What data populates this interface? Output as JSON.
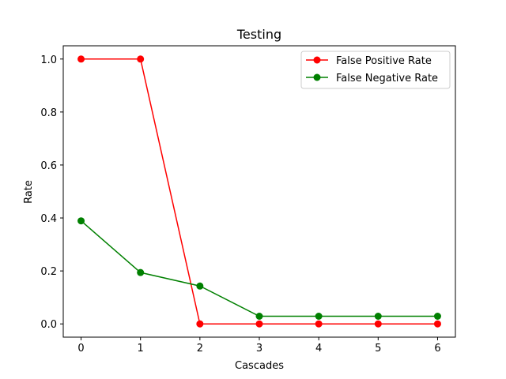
{
  "chart_data": {
    "type": "line",
    "title": "Testing",
    "xlabel": "Cascades",
    "ylabel": "Rate",
    "x": [
      0,
      1,
      2,
      3,
      4,
      5,
      6
    ],
    "xlim": [
      -0.3,
      6.3
    ],
    "ylim": [
      -0.05,
      1.05
    ],
    "xticks": [
      "0",
      "1",
      "2",
      "3",
      "4",
      "5",
      "6"
    ],
    "yticks": [
      "0.0",
      "0.2",
      "0.4",
      "0.6",
      "0.8",
      "1.0"
    ],
    "grid": false,
    "legend_position": "top-right",
    "series": [
      {
        "name": "False Positive Rate",
        "color": "#ff0000",
        "marker": "circle",
        "values": [
          1.0,
          1.0,
          0.0,
          0.0,
          0.0,
          0.0,
          0.0
        ]
      },
      {
        "name": "False Negative Rate",
        "color": "#008000",
        "marker": "circle",
        "values": [
          0.389,
          0.194,
          0.143,
          0.029,
          0.029,
          0.029,
          0.029
        ]
      }
    ]
  }
}
